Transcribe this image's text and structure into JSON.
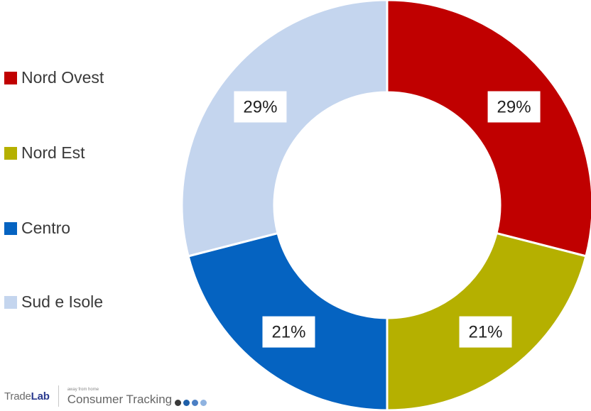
{
  "chart_data": {
    "type": "pie",
    "donut": true,
    "categories": [
      "Nord Ovest",
      "Nord Est",
      "Centro",
      "Sud e Isole"
    ],
    "values": [
      29,
      21,
      21,
      29
    ],
    "labels": [
      "29%",
      "21%",
      "21%",
      "29%"
    ],
    "colors": [
      "#C00000",
      "#B5B000",
      "#0563C1",
      "#C4D5EE"
    ],
    "legend_position": "left",
    "start_angle": "top, clockwise"
  },
  "legend": {
    "items": [
      {
        "label": "Nord Ovest",
        "color": "#C00000"
      },
      {
        "label": "Nord Est",
        "color": "#B5B000"
      },
      {
        "label": "Centro",
        "color": "#0563C1"
      },
      {
        "label": "Sud e Isole",
        "color": "#C4D5EE"
      }
    ]
  },
  "footer": {
    "brand_prefix": "Trade",
    "brand_suffix": "Lab",
    "tagline": "away from home",
    "product": "Consumer Tracking",
    "dot_colors": [
      "#3a3a3a",
      "#1f5fa8",
      "#4b7fc4",
      "#8fb3e0"
    ]
  }
}
